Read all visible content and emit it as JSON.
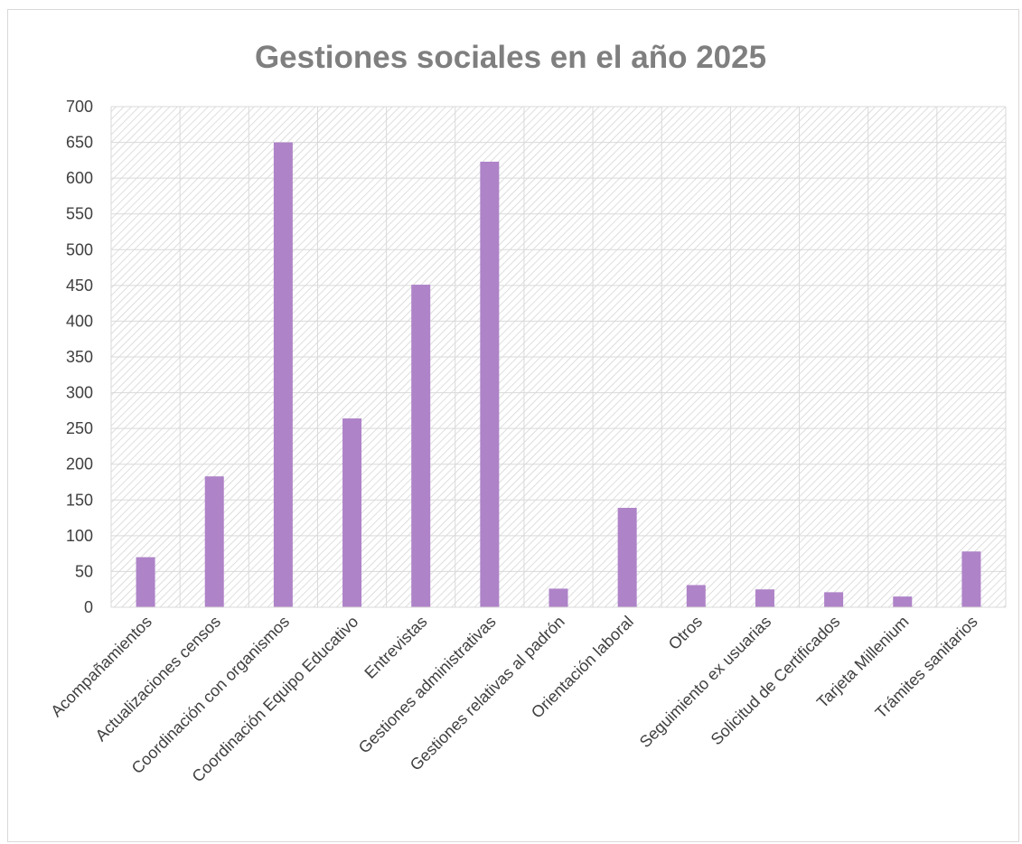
{
  "chart_data": {
    "type": "bar",
    "title": "Gestiones sociales en el año 2025",
    "xlabel": "",
    "ylabel": "",
    "ylim": [
      0,
      700
    ],
    "ytick_step": 50,
    "grid": true,
    "legend": "none",
    "bar_color": "#ae83c8",
    "categories": [
      "Acompañamientos",
      "Actualizaciones censos",
      "Coordinación con organismos",
      "Coordinación Equipo Educativo",
      "Entrevistas",
      "Gestiones administrativas",
      "Gestiones relativas al padrón",
      "Orientación laboral",
      "Otros",
      "Seguimiento ex usuarias",
      "Solicitud de Certificados",
      "Tarjeta Millenium",
      "Trámites sanitarios"
    ],
    "values": [
      70,
      183,
      650,
      264,
      451,
      623,
      26,
      139,
      31,
      25,
      21,
      15,
      78
    ]
  },
  "colors": {
    "title": "#7f7f7f",
    "axis_text": "#404040",
    "gridline": "#d9d9d9",
    "hatch": "#d0d0d0"
  }
}
